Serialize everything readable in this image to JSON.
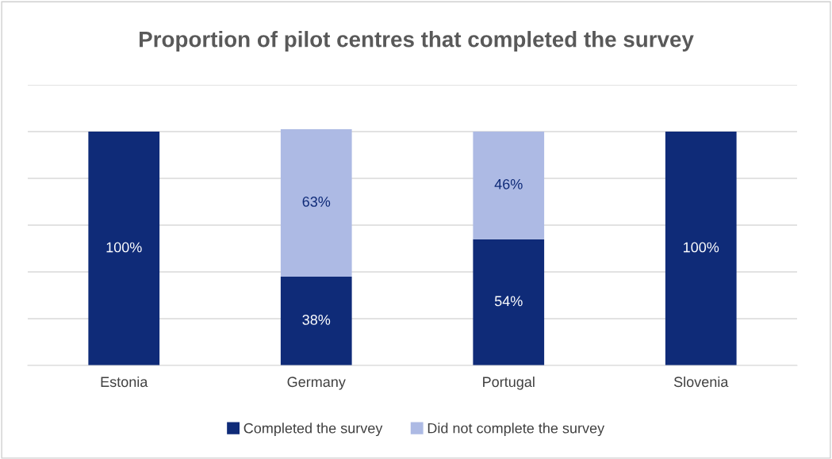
{
  "chart_data": {
    "type": "bar",
    "stacked": true,
    "title": "Proportion of pilot centres that completed the survey",
    "categories": [
      "Estonia",
      "Germany",
      "Portugal",
      "Slovenia"
    ],
    "series": [
      {
        "name": "Completed the survey",
        "color": "#0f2b78",
        "values": [
          100,
          38,
          54,
          100
        ],
        "value_labels": [
          "100%",
          "38%",
          "54%",
          "100%"
        ]
      },
      {
        "name": "Did not complete the survey",
        "color": "#adbae4",
        "values": [
          null,
          63,
          46,
          null
        ],
        "value_labels": [
          null,
          "63%",
          "46%",
          null
        ]
      }
    ],
    "ylim": [
      0,
      120
    ],
    "yticks": [
      {
        "value": 0,
        "label": null
      },
      {
        "value": 20,
        "label": null
      },
      {
        "value": 40,
        "label": null
      },
      {
        "value": 60,
        "label": null
      },
      {
        "value": 80,
        "label": null
      },
      {
        "value": 100,
        "label": null
      },
      {
        "value": 120,
        "label": null
      }
    ],
    "tick_labels": "x",
    "grid": "y",
    "legend": "bottom"
  }
}
